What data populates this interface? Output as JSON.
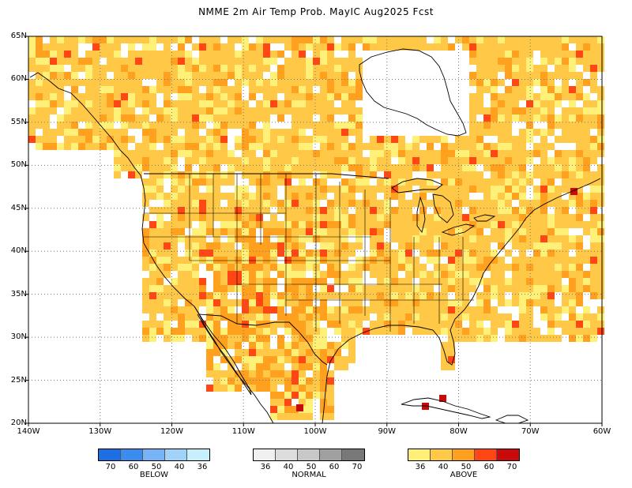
{
  "title": "NMME 2m Air Temp Prob. MayIC  Aug2025 Fcst",
  "lat_labels": [
    "65N",
    "60N",
    "55N",
    "50N",
    "45N",
    "40N",
    "35N",
    "30N",
    "25N",
    "20N"
  ],
  "lon_labels": [
    "140W",
    "130W",
    "120W",
    "110W",
    "100W",
    "90W",
    "80W",
    "70W",
    "60W"
  ],
  "legend": [
    {
      "name": "BELOW",
      "colors": [
        "#1e6ee6",
        "#3c8cf0",
        "#78b4f5",
        "#a0d2fa",
        "#c8f0fa"
      ],
      "ticks": [
        "70",
        "60",
        "50",
        "40",
        "36"
      ]
    },
    {
      "name": "NORMAL",
      "colors": [
        "#f0f0f0",
        "#dcdcdc",
        "#c8c8c8",
        "#a0a0a0",
        "#787878"
      ],
      "ticks": [
        "36",
        "40",
        "50",
        "60",
        "70"
      ]
    },
    {
      "name": "ABOVE",
      "colors": [
        "#fff078",
        "#ffc846",
        "#ffa01e",
        "#ff4614",
        "#c80a0a"
      ],
      "ticks": [
        "36",
        "40",
        "50",
        "60",
        "70"
      ]
    }
  ]
}
